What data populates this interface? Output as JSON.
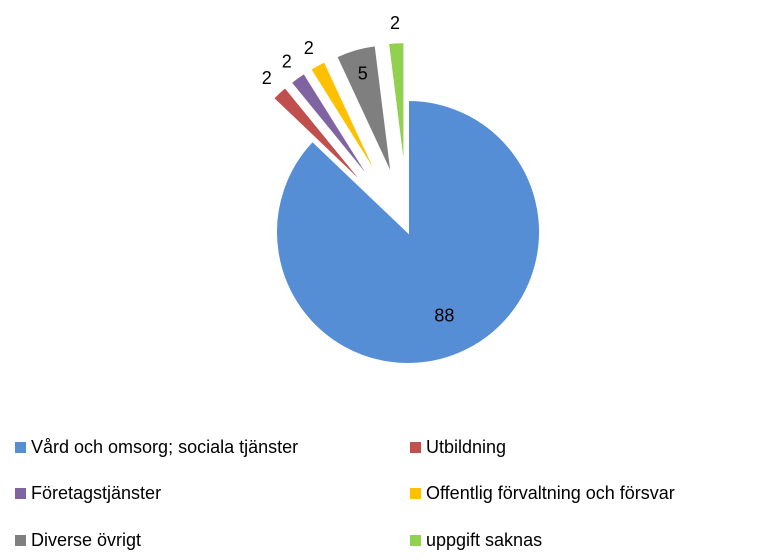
{
  "chart_data": {
    "type": "pie",
    "categories": [
      "Vård och omsorg; sociala tjänster",
      "Utbildning",
      "Företagstjänster",
      "Offentlig förvaltning och försvar",
      "Diverse övrigt",
      "uppgift saknas"
    ],
    "values": [
      88,
      2,
      2,
      2,
      5,
      2
    ],
    "colors": [
      "#558ed5",
      "#c0504d",
      "#8064a2",
      "#ffc000",
      "#7f7f7f",
      "#92d050"
    ]
  }
}
